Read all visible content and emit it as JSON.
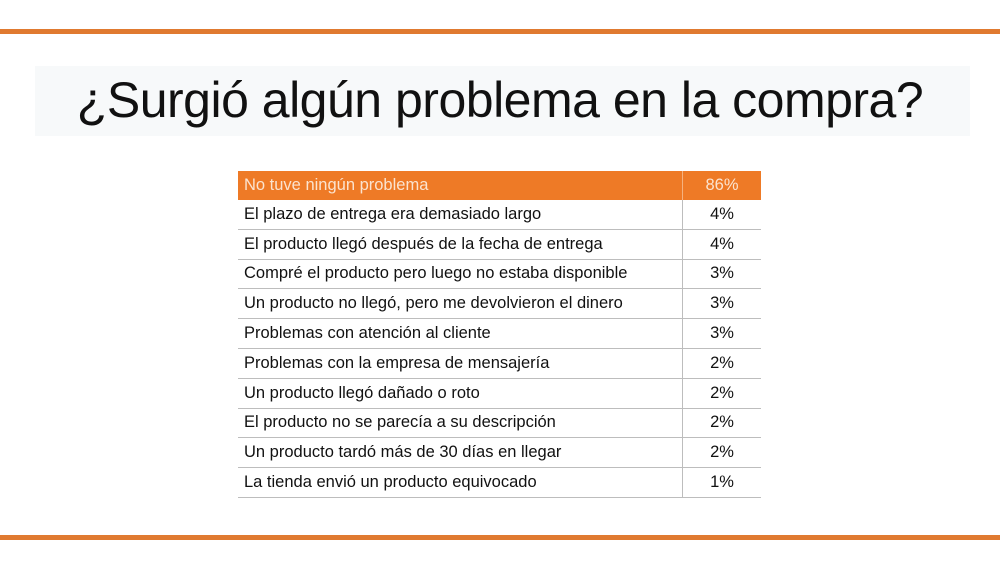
{
  "colors": {
    "accent": "#ee7a26",
    "bar": "#e07a30"
  },
  "chart_data": {
    "type": "table",
    "title": "¿Surgió algún problema en la compra?",
    "rows": [
      {
        "label": "No tuve ningún problema",
        "value": "86%"
      },
      {
        "label": "El plazo de entrega era demasiado largo",
        "value": "4%"
      },
      {
        "label": "El producto llegó después de la fecha de entrega",
        "value": "4%"
      },
      {
        "label": "Compré el producto pero luego no estaba disponible",
        "value": "3%"
      },
      {
        "label": "Un producto no llegó, pero me devolvieron el dinero",
        "value": "3%"
      },
      {
        "label": "Problemas con atención al cliente",
        "value": "3%"
      },
      {
        "label": "Problemas con la empresa de mensajería",
        "value": "2%"
      },
      {
        "label": "Un producto llegó dañado o roto",
        "value": "2%"
      },
      {
        "label": "El producto no se parecía a su descripción",
        "value": "2%"
      },
      {
        "label": "Un producto tardó más de 30 días en llegar",
        "value": "2%"
      },
      {
        "label": "La tienda envió un producto equivocado",
        "value": "1%"
      }
    ]
  }
}
